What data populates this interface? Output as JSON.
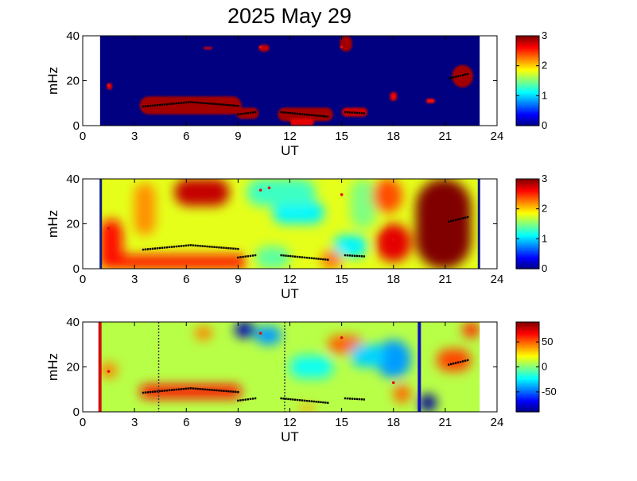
{
  "figure": {
    "title": "2025 May 29"
  },
  "chart_data": [
    {
      "type": "heatmap",
      "xlabel": "UT",
      "ylabel": "mHz",
      "xlim": [
        0,
        24
      ],
      "ylim": [
        0,
        40
      ],
      "xticks": [
        "0",
        "3",
        "6",
        "9",
        "12",
        "15",
        "18",
        "21",
        "24"
      ],
      "yticks": [
        "0",
        "20",
        "40"
      ],
      "data_range_ut": [
        1,
        23
      ],
      "colorbar": {
        "min": 0,
        "max": 3,
        "ticks": [
          "0",
          "1",
          "2",
          "3"
        ]
      },
      "background_value": 0,
      "blobs": [
        {
          "ut": [
            3.3,
            9.2
          ],
          "f": [
            5,
            13
          ],
          "value": 2.9
        },
        {
          "ut": [
            8.9,
            10.2
          ],
          "f": [
            3,
            8
          ],
          "value": 2.9
        },
        {
          "ut": [
            11.3,
            14.5
          ],
          "f": [
            2,
            8
          ],
          "value": 2.9
        },
        {
          "ut": [
            12.0,
            13.4
          ],
          "f": [
            0,
            3
          ],
          "value": 2.7
        },
        {
          "ut": [
            15.0,
            16.5
          ],
          "f": [
            4,
            8
          ],
          "value": 2.8
        },
        {
          "ut": [
            14.9,
            15.6
          ],
          "f": [
            33,
            40
          ],
          "value": 2.9
        },
        {
          "ut": [
            10.2,
            10.8
          ],
          "f": [
            33,
            36
          ],
          "value": 2.8
        },
        {
          "ut": [
            7.0,
            7.5
          ],
          "f": [
            34,
            35
          ],
          "value": 2.7
        },
        {
          "ut": [
            21.4,
            22.6
          ],
          "f": [
            17,
            27
          ],
          "value": 2.9
        },
        {
          "ut": [
            17.8,
            18.2
          ],
          "f": [
            11,
            15
          ],
          "value": 2.7
        },
        {
          "ut": [
            1.4,
            1.7
          ],
          "f": [
            16,
            19
          ],
          "value": 2.7
        },
        {
          "ut": [
            19.9,
            20.4
          ],
          "f": [
            10,
            12
          ],
          "value": 2.6
        }
      ],
      "markers": [
        {
          "ut": [
            3.5,
            9.0
          ],
          "f": [
            8.5,
            10.5,
            8.8
          ],
          "style": "line"
        },
        {
          "ut": [
            9.0,
            10.0
          ],
          "f": [
            5,
            6
          ],
          "style": "line"
        },
        {
          "ut": [
            11.5,
            14.2
          ],
          "f": [
            6,
            4
          ],
          "style": "line"
        },
        {
          "ut": [
            15.2,
            16.3
          ],
          "f": [
            6,
            5.5
          ],
          "style": "line"
        },
        {
          "ut": [
            21.2,
            22.3
          ],
          "f": [
            21,
            23
          ],
          "style": "line"
        },
        {
          "ut": [
            1.5,
            1.5
          ],
          "f": [
            18,
            18
          ],
          "style": "dot"
        },
        {
          "ut": [
            18.0,
            18.0
          ],
          "f": [
            13,
            13
          ],
          "style": "dot"
        },
        {
          "ut": [
            10.3,
            10.3
          ],
          "f": [
            35,
            35
          ],
          "style": "dot"
        },
        {
          "ut": [
            15.0,
            15.0
          ],
          "f": [
            35,
            35
          ],
          "style": "dot"
        }
      ]
    },
    {
      "type": "heatmap",
      "xlabel": "UT",
      "ylabel": "mHz",
      "xlim": [
        0,
        24
      ],
      "ylim": [
        0,
        40
      ],
      "xticks": [
        "0",
        "3",
        "6",
        "9",
        "12",
        "15",
        "18",
        "21",
        "24"
      ],
      "yticks": [
        "0",
        "20",
        "40"
      ],
      "data_range_ut": [
        1,
        23
      ],
      "colorbar": {
        "min": 0,
        "max": 3,
        "ticks": [
          "0",
          "1",
          "2",
          "3"
        ]
      },
      "background_value": 1.8,
      "blobs": [
        {
          "ut": [
            19.3,
            22.5
          ],
          "f": [
            0,
            40
          ],
          "value": 3.0
        },
        {
          "ut": [
            5.3,
            8.5
          ],
          "f": [
            28,
            40
          ],
          "value": 2.8
        },
        {
          "ut": [
            1.0,
            2.3
          ],
          "f": [
            0,
            22
          ],
          "value": 2.6
        },
        {
          "ut": [
            1.0,
            9.5
          ],
          "f": [
            0,
            6
          ],
          "value": 2.6
        },
        {
          "ut": [
            17.0,
            19.0
          ],
          "f": [
            3,
            20
          ],
          "value": 2.7
        },
        {
          "ut": [
            11.0,
            14.0
          ],
          "f": [
            20,
            30
          ],
          "value": 1.1
        },
        {
          "ut": [
            14.5,
            16.5
          ],
          "f": [
            5,
            15
          ],
          "value": 1.1
        },
        {
          "ut": [
            9.5,
            13.5
          ],
          "f": [
            28,
            40
          ],
          "value": 1.3
        },
        {
          "ut": [
            15.5,
            17.0
          ],
          "f": [
            18,
            40
          ],
          "value": 1.5
        },
        {
          "ut": [
            10.0,
            12.0
          ],
          "f": [
            0,
            10
          ],
          "value": 1.4
        },
        {
          "ut": [
            3.0,
            4.2
          ],
          "f": [
            15,
            38
          ],
          "value": 2.2
        },
        {
          "ut": [
            16.8,
            18.5
          ],
          "f": [
            25,
            40
          ],
          "value": 2.4
        },
        {
          "ut": [
            13.8,
            15.0
          ],
          "f": [
            0,
            8
          ],
          "value": 2.3
        }
      ],
      "markers": [
        {
          "ut": [
            3.5,
            9.0
          ],
          "f": [
            8.5,
            10.5,
            8.8
          ],
          "style": "line"
        },
        {
          "ut": [
            9.0,
            10.0
          ],
          "f": [
            5,
            6
          ],
          "style": "line"
        },
        {
          "ut": [
            11.5,
            14.2
          ],
          "f": [
            6,
            4
          ],
          "style": "line"
        },
        {
          "ut": [
            15.2,
            16.3
          ],
          "f": [
            6,
            5.5
          ],
          "style": "line"
        },
        {
          "ut": [
            21.2,
            22.3
          ],
          "f": [
            21,
            23
          ],
          "style": "line"
        },
        {
          "ut": [
            1.5,
            1.5
          ],
          "f": [
            18,
            18
          ],
          "style": "dot"
        },
        {
          "ut": [
            18.0,
            18.0
          ],
          "f": [
            13,
            13
          ],
          "style": "dot"
        },
        {
          "ut": [
            10.3,
            10.3
          ],
          "f": [
            35,
            35
          ],
          "style": "dot"
        },
        {
          "ut": [
            10.8,
            10.8
          ],
          "f": [
            36,
            36
          ],
          "style": "dot"
        },
        {
          "ut": [
            15.0,
            15.0
          ],
          "f": [
            33,
            33
          ],
          "style": "dot"
        }
      ]
    },
    {
      "type": "heatmap",
      "xlabel": "UT",
      "ylabel": "mHz",
      "xlim": [
        0,
        24
      ],
      "ylim": [
        0,
        40
      ],
      "xticks": [
        "0",
        "3",
        "6",
        "9",
        "12",
        "15",
        "18",
        "21",
        "24"
      ],
      "yticks": [
        "0",
        "20",
        "40"
      ],
      "data_range_ut": [
        1,
        23
      ],
      "colorbar": {
        "min": -90,
        "max": 90,
        "ticks": [
          "50",
          "0",
          "-50"
        ],
        "tick_values": [
          50,
          0,
          -50
        ]
      },
      "background_value": 10,
      "blobs": [
        {
          "ut": [
            3.3,
            9.2
          ],
          "f": [
            6,
            12
          ],
          "value": 65
        },
        {
          "ut": [
            8.8,
            10.0
          ],
          "f": [
            33,
            40
          ],
          "value": -80
        },
        {
          "ut": [
            10.0,
            11.5
          ],
          "f": [
            30,
            38
          ],
          "value": -40
        },
        {
          "ut": [
            19.5,
            20.5
          ],
          "f": [
            0,
            8
          ],
          "value": -85
        },
        {
          "ut": [
            17.0,
            19.0
          ],
          "f": [
            15,
            32
          ],
          "value": -40
        },
        {
          "ut": [
            20.5,
            22.5
          ],
          "f": [
            18,
            28
          ],
          "value": 55
        },
        {
          "ut": [
            22.0,
            23.0
          ],
          "f": [
            33,
            40
          ],
          "value": 60
        },
        {
          "ut": [
            1.0,
            2.0
          ],
          "f": [
            15,
            22
          ],
          "value": 45
        },
        {
          "ut": [
            14.2,
            16.2
          ],
          "f": [
            26,
            34
          ],
          "value": 50
        },
        {
          "ut": [
            6.5,
            7.5
          ],
          "f": [
            32,
            38
          ],
          "value": 45
        },
        {
          "ut": [
            12.0,
            14.5
          ],
          "f": [
            15,
            25
          ],
          "value": -20
        },
        {
          "ut": [
            15.5,
            17.5
          ],
          "f": [
            20,
            30
          ],
          "value": -30
        },
        {
          "ut": [
            18.0,
            19.0
          ],
          "f": [
            4,
            12
          ],
          "value": 50
        },
        {
          "ut": [
            12.5,
            13.5
          ],
          "f": [
            0,
            3
          ],
          "value": 40
        }
      ],
      "markers": [
        {
          "ut": [
            3.5,
            9.0
          ],
          "f": [
            8.5,
            10.5,
            8.8
          ],
          "style": "line"
        },
        {
          "ut": [
            9.0,
            10.0
          ],
          "f": [
            5,
            6
          ],
          "style": "line"
        },
        {
          "ut": [
            11.5,
            14.2
          ],
          "f": [
            6,
            4
          ],
          "style": "line"
        },
        {
          "ut": [
            15.2,
            16.3
          ],
          "f": [
            6,
            5.5
          ],
          "style": "line"
        },
        {
          "ut": [
            21.2,
            22.3
          ],
          "f": [
            21,
            23
          ],
          "style": "line"
        },
        {
          "ut": [
            1.5,
            1.5
          ],
          "f": [
            18,
            18
          ],
          "style": "dot"
        },
        {
          "ut": [
            18.0,
            18.0
          ],
          "f": [
            13,
            13
          ],
          "style": "dot"
        },
        {
          "ut": [
            10.3,
            10.3
          ],
          "f": [
            35,
            35
          ],
          "style": "dot"
        },
        {
          "ut": [
            15.0,
            15.0
          ],
          "f": [
            33,
            33
          ],
          "style": "dot"
        }
      ],
      "vlines": [
        {
          "ut": 1.0,
          "color": "#d01010",
          "style": "solid"
        },
        {
          "ut": 4.4,
          "color": "#404040",
          "style": "dotted"
        },
        {
          "ut": 11.7,
          "color": "#404040",
          "style": "dotted"
        },
        {
          "ut": 19.5,
          "color": "#1010c0",
          "style": "solid"
        }
      ]
    }
  ]
}
